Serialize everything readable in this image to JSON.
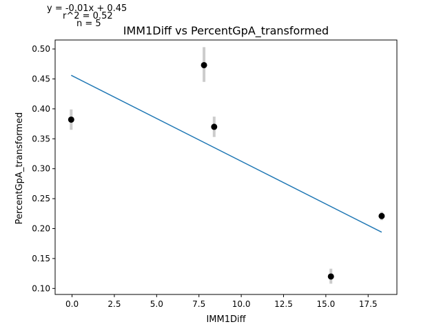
{
  "chart_data": {
    "type": "scatter",
    "title": "IMM1Diff vs PercentGpA_transformed",
    "xlabel": "IMM1Diff",
    "ylabel": "PercentGpA_transformed",
    "xlim": [
      -1.0,
      19.2
    ],
    "ylim": [
      0.09,
      0.515
    ],
    "xticks": [
      0.0,
      2.5,
      5.0,
      7.5,
      10.0,
      12.5,
      15.0,
      17.5
    ],
    "xtick_labels": [
      "0.0",
      "2.5",
      "5.0",
      "7.5",
      "10.0",
      "12.5",
      "15.0",
      "17.5"
    ],
    "yticks": [
      0.1,
      0.15,
      0.2,
      0.25,
      0.3,
      0.35,
      0.4,
      0.45,
      0.5
    ],
    "ytick_labels": [
      "0.10",
      "0.15",
      "0.20",
      "0.25",
      "0.30",
      "0.35",
      "0.40",
      "0.45",
      "0.50"
    ],
    "grid": false,
    "points": [
      {
        "x": -0.05,
        "y": 0.382,
        "err_low": 0.365,
        "err_high": 0.399
      },
      {
        "x": 7.8,
        "y": 0.473,
        "err_low": 0.445,
        "err_high": 0.503
      },
      {
        "x": 8.4,
        "y": 0.37,
        "err_low": 0.353,
        "err_high": 0.387
      },
      {
        "x": 15.3,
        "y": 0.12,
        "err_low": 0.108,
        "err_high": 0.133
      },
      {
        "x": 18.3,
        "y": 0.221,
        "err_low": 0.214,
        "err_high": 0.228
      }
    ],
    "fit_line": {
      "x": [
        -0.05,
        18.3
      ],
      "y": [
        0.456,
        0.194
      ]
    },
    "colors": {
      "points": "#000000",
      "errorbars": "#cccccc",
      "fit": "#1f77b4"
    },
    "annotations": {
      "equation": "y = -0.01x + 0.45",
      "r_squared": "r^2 = 0.52",
      "n": "n = 5"
    }
  }
}
